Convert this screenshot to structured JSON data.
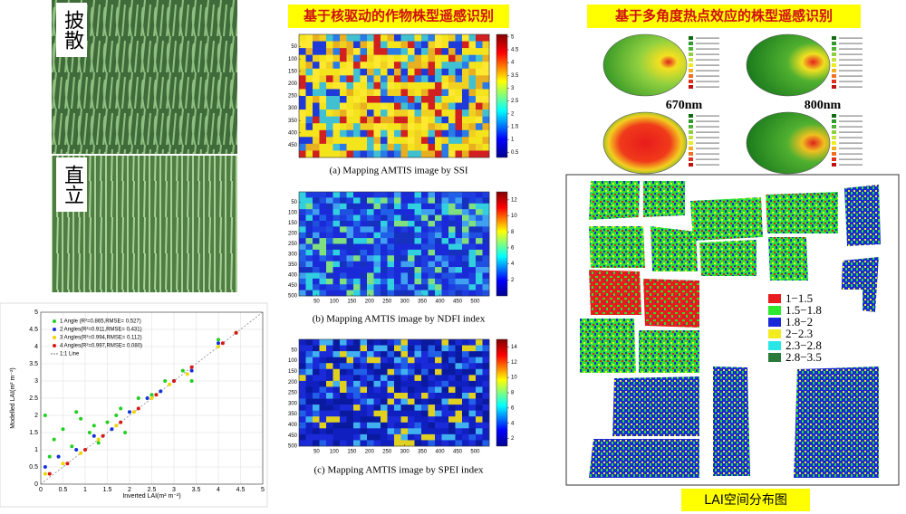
{
  "photos": [
    {
      "label": "披散"
    },
    {
      "label": "直立"
    }
  ],
  "titles": {
    "left": "基于核驱动的作物株型遥感识别",
    "right": "基于多角度热点效应的株型遥感识别"
  },
  "maps": [
    {
      "caption": "(a) Mapping AMTIS image by SSI",
      "xlim": [
        0,
        540
      ],
      "ylim": [
        0,
        500
      ],
      "yticks": [
        50,
        100,
        150,
        200,
        250,
        300,
        350,
        400,
        450
      ],
      "clim": [
        0.3,
        5.1
      ],
      "colorbar_ticks": [
        0.5,
        1,
        1.5,
        2,
        2.5,
        3,
        3.5,
        4,
        4.5,
        5
      ]
    },
    {
      "caption": "(b) Mapping  AMTIS image by NDFI  index",
      "xlim": [
        0,
        540
      ],
      "ylim": [
        0,
        500
      ],
      "xticks": [
        50,
        100,
        150,
        200,
        250,
        300,
        350,
        400,
        450,
        500
      ],
      "yticks": [
        50,
        100,
        150,
        200,
        250,
        300,
        350,
        400,
        450,
        500
      ],
      "clim": [
        0,
        13
      ],
      "colorbar_ticks": [
        2,
        4,
        6,
        8,
        10,
        12
      ]
    },
    {
      "caption": "(c) Mapping  AMTIS image by SPEI  index",
      "xlim": [
        0,
        540
      ],
      "ylim": [
        0,
        500
      ],
      "xticks": [
        50,
        100,
        150,
        200,
        250,
        300,
        350,
        400,
        450,
        500
      ],
      "yticks": [
        50,
        100,
        150,
        200,
        250,
        300,
        350,
        400,
        450,
        500
      ],
      "clim": [
        1,
        15
      ],
      "colorbar_ticks": [
        2,
        4,
        6,
        8,
        10,
        12,
        14
      ]
    }
  ],
  "polar": {
    "labels": [
      "670nm",
      "800nm"
    ]
  },
  "lai_map": {
    "caption": "LAI空间分布图",
    "legend": [
      {
        "label": "1−1.5",
        "color": "#e81c1c"
      },
      {
        "label": "1.5−1.8",
        "color": "#2ee82e"
      },
      {
        "label": "1.8−2",
        "color": "#1a2ad8"
      },
      {
        "label": "2−2.3",
        "color": "#f2ec1e"
      },
      {
        "label": "2.3−2.8",
        "color": "#2ae6e6"
      },
      {
        "label": "2.8−3.5",
        "color": "#2a7a3a"
      }
    ]
  },
  "chart_data": {
    "type": "scatter",
    "xlabel": "Inverted LAI(m² m⁻²)",
    "ylabel": "Modelled LAI(m² m⁻²)",
    "xlim": [
      0,
      5
    ],
    "ylim": [
      0,
      5
    ],
    "xticks": [
      0,
      0.5,
      1,
      1.5,
      2,
      2.5,
      3,
      3.5,
      4,
      4.5,
      5
    ],
    "yticks": [
      0,
      0.5,
      1,
      1.5,
      2,
      2.5,
      3,
      3.5,
      4,
      4.5,
      5
    ],
    "reference_line": "1:1 Line",
    "series": [
      {
        "name": "1 Angle (R²=0.865,RMSE= 0.527)",
        "color": "#22d022",
        "x": [
          0.1,
          0.3,
          0.5,
          0.7,
          0.9,
          1.1,
          1.3,
          1.5,
          1.7,
          1.9,
          2.2,
          2.5,
          2.8,
          3.2,
          3.4,
          4.0,
          0.2,
          0.8,
          1.2,
          1.8
        ],
        "y": [
          2.0,
          1.3,
          1.6,
          1.1,
          1.9,
          1.5,
          1.2,
          1.8,
          2.0,
          1.5,
          2.5,
          2.6,
          3.0,
          3.3,
          3.0,
          4.2,
          0.8,
          2.1,
          1.7,
          2.2
        ]
      },
      {
        "name": "2 Angles(R²=0.911,RMSE= 0.431)",
        "color": "#1432d8",
        "x": [
          0.1,
          0.4,
          0.8,
          1.2,
          1.6,
          2.0,
          2.4,
          2.7,
          3.0,
          3.4,
          4.0,
          4.4
        ],
        "y": [
          0.5,
          0.8,
          1.0,
          1.4,
          1.6,
          2.1,
          2.5,
          2.7,
          3.0,
          3.3,
          4.1,
          4.4
        ]
      },
      {
        "name": "3 Angles(R²=0.994,RMSE= 0.112)",
        "color": "#f2d400",
        "x": [
          0.1,
          0.5,
          0.9,
          1.3,
          1.7,
          2.1,
          2.5,
          2.9,
          3.3,
          4.0,
          4.4
        ],
        "y": [
          0.3,
          0.6,
          0.9,
          1.3,
          1.7,
          2.1,
          2.5,
          2.9,
          3.2,
          4.0,
          4.4
        ]
      },
      {
        "name": "4 Angles(R²=0.997,RMSE= 0.080)",
        "color": "#d81818",
        "x": [
          0.2,
          0.6,
          1.0,
          1.4,
          1.8,
          2.2,
          2.6,
          3.0,
          3.4,
          4.1,
          4.4
        ],
        "y": [
          0.3,
          0.6,
          1.0,
          1.4,
          1.8,
          2.2,
          2.6,
          3.0,
          3.4,
          4.1,
          4.4
        ]
      }
    ]
  }
}
